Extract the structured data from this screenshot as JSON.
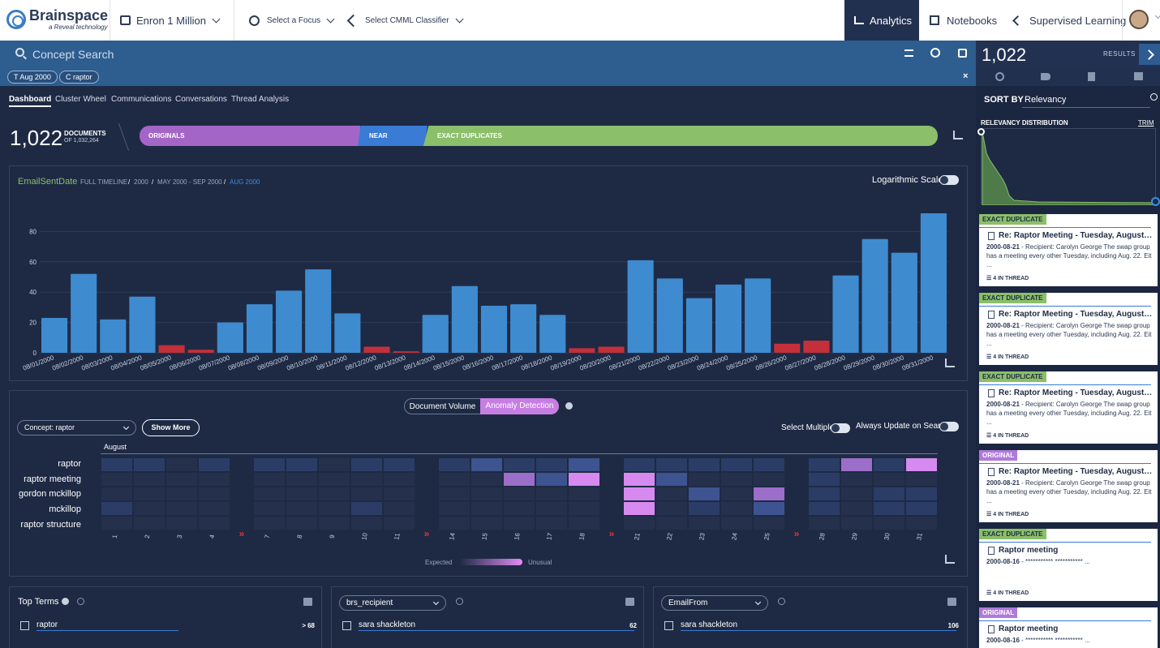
{
  "header": {
    "brand": "Brainspace",
    "brand_sub": "a Reveal technology",
    "dataset": "Enron 1 Million",
    "focus": "Select a Focus",
    "classifier": "Select CMML Classifier",
    "nav": [
      "Analytics",
      "Notebooks",
      "Supervised Learning"
    ],
    "active_nav": "Analytics"
  },
  "search": {
    "placeholder": "Concept Search",
    "chips": [
      "Aug 2000",
      "raptor"
    ],
    "chip_prefixes": [
      "T",
      "C"
    ]
  },
  "tabs": [
    "Dashboard",
    "Cluster Wheel",
    "Communications",
    "Conversations",
    "Thread Analysis"
  ],
  "active_tab": "Dashboard",
  "summary": {
    "count": "1,022",
    "label": "DOCUMENTS",
    "of": "OF 1,032,264",
    "segments": [
      "ORIGINALS",
      "NEAR DUPLICATES",
      "EXACT DUPLICATES"
    ],
    "segment_colors": [
      "#a466c6",
      "#3a7bd5",
      "#8bbf6a"
    ]
  },
  "timeline": {
    "field": "EmailSentDate",
    "breadcrumb": [
      "FULL TIMELINE",
      "2000",
      "MAY 2000 - SEP 2000",
      "AUG 2000"
    ],
    "log_scale_label": "Logarithmic Scale"
  },
  "chart_data": {
    "type": "bar",
    "ylim": [
      0,
      100
    ],
    "yticks": [
      0,
      20,
      40,
      60,
      80
    ],
    "categories": [
      "08/01/2000",
      "08/02/2000",
      "08/03/2000",
      "08/04/2000",
      "08/05/2000",
      "08/06/2000",
      "08/07/2000",
      "08/08/2000",
      "08/09/2000",
      "08/10/2000",
      "08/11/2000",
      "08/12/2000",
      "08/13/2000",
      "08/14/2000",
      "08/15/2000",
      "08/16/2000",
      "08/17/2000",
      "08/18/2000",
      "08/19/2000",
      "08/20/2000",
      "08/21/2000",
      "08/22/2000",
      "08/23/2000",
      "08/24/2000",
      "08/25/2000",
      "08/26/2000",
      "08/27/2000",
      "08/28/2000",
      "08/29/2000",
      "08/30/2000",
      "08/31/2000"
    ],
    "values": [
      23,
      52,
      22,
      37,
      5,
      2,
      20,
      32,
      41,
      55,
      26,
      4,
      1,
      25,
      44,
      31,
      32,
      25,
      3,
      4,
      61,
      49,
      36,
      45,
      49,
      6,
      8,
      51,
      75,
      66,
      92
    ],
    "weekend_indices": [
      4,
      5,
      11,
      12,
      18,
      19,
      25,
      26
    ],
    "colors": {
      "weekday": "#3f8bd0",
      "weekend": "#c4303a"
    }
  },
  "anomaly": {
    "modes": [
      "Document Volume",
      "Anomaly Detection"
    ],
    "active_mode": "Anomaly Detection",
    "concept_select": "Concept: raptor",
    "show_more": "Show More",
    "select_multiple": "Select Multiple",
    "always_update": "Always Update on Search",
    "month": "August",
    "rows": [
      "raptor",
      "raptor meeting",
      "gordon mckillop",
      "mckillop",
      "raptor structure"
    ],
    "days": [
      "1",
      "2",
      "3",
      "4",
      "7",
      "8",
      "9",
      "10",
      "11",
      "14",
      "15",
      "16",
      "17",
      "18",
      "21",
      "22",
      "23",
      "24",
      "25",
      "28",
      "29",
      "30",
      "31"
    ],
    "gaps_after": [
      3,
      8,
      13,
      18
    ],
    "legend_expected": "Expected",
    "legend_unusual": "Unusual",
    "intensity": [
      [
        1,
        1,
        0,
        1,
        1,
        1,
        0,
        1,
        1,
        1,
        2,
        1,
        1,
        2,
        1,
        1,
        1,
        1,
        1,
        1,
        3,
        1,
        4
      ],
      [
        0,
        0,
        0,
        0,
        0,
        0,
        0,
        0,
        0,
        0,
        0,
        3,
        2,
        4,
        4,
        2,
        0,
        0,
        0,
        1,
        0,
        0,
        0
      ],
      [
        0,
        0,
        0,
        0,
        0,
        0,
        0,
        0,
        0,
        0,
        0,
        0,
        0,
        0,
        4,
        0,
        2,
        0,
        3,
        1,
        0,
        1,
        1
      ],
      [
        1,
        0,
        0,
        0,
        0,
        0,
        0,
        1,
        0,
        0,
        0,
        0,
        0,
        0,
        4,
        0,
        1,
        0,
        2,
        1,
        0,
        1,
        1
      ],
      [
        0,
        0,
        0,
        0,
        0,
        0,
        0,
        0,
        0,
        0,
        0,
        0,
        0,
        0,
        0,
        0,
        0,
        0,
        0,
        0,
        0,
        0,
        0
      ]
    ]
  },
  "facets": [
    {
      "title": "Top Terms",
      "item": "raptor",
      "count": "> 68"
    },
    {
      "title": "brs_recipient",
      "item": "sara shackleton",
      "count": "62"
    },
    {
      "title": "EmailFrom",
      "item": "sara shackleton",
      "count": "106"
    }
  ],
  "results": {
    "count": "1,022",
    "label": "RESULTS",
    "sort_label": "SORT BY",
    "sort_value": "Relevancy",
    "distribution_label": "RELEVANCY DISTRIBUTION",
    "trim": "TRIM",
    "cards": [
      {
        "badge": "EXACT DUPLICATE",
        "type": "exact",
        "title": "Re: Raptor Meeting - Tuesday, August 22, 2...",
        "date": "2000-08-21",
        "snippet": " - Recipient: Carolyn George The swap group has a meeting every other Tuesday, including Aug. 22. Eit ...",
        "thread": "4 IN THREAD"
      },
      {
        "badge": "EXACT DUPLICATE",
        "type": "exact",
        "title": "Re: Raptor Meeting - Tuesday, August 22, 2...",
        "date": "2000-08-21",
        "snippet": " - Recipient: Carolyn George The swap group has a meeting every other Tuesday, including Aug. 22. Eit ...",
        "thread": "4 IN THREAD"
      },
      {
        "badge": "EXACT DUPLICATE",
        "type": "exact",
        "title": "Re: Raptor Meeting - Tuesday, August 22, 2...",
        "date": "2000-08-21",
        "snippet": " - Recipient: Carolyn George The swap group has a meeting every other Tuesday, including Aug. 22. Eit ...",
        "thread": "4 IN THREAD"
      },
      {
        "badge": "ORIGINAL",
        "type": "orig",
        "title": "Re: Raptor Meeting - Tuesday, August 22, 2...",
        "date": "2000-08-21",
        "snippet": " - Recipient: Carolyn George The swap group has a meeting every other Tuesday, including Aug. 22. Eit ...",
        "thread": "4 IN THREAD"
      },
      {
        "badge": "EXACT DUPLICATE",
        "type": "exact",
        "title": "Raptor meeting",
        "date": "2000-08-16",
        "snippet": " - *********** *********** ...",
        "thread": "4 IN THREAD"
      },
      {
        "badge": "ORIGINAL",
        "type": "orig",
        "title": "Raptor meeting",
        "date": "2000-08-16",
        "snippet": " - *********** *********** ...",
        "thread": ""
      }
    ]
  }
}
